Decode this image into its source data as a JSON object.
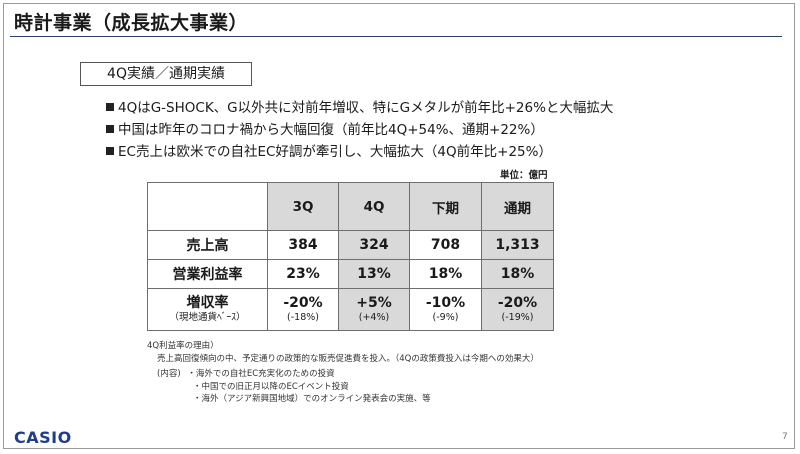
{
  "title": "時計事業（成長拡大事業）",
  "section_label": "4Q実績／通期実績",
  "bullets": [
    "4QはG-SHOCK、G以外共に対前年増収、特にGメタルが前年比+26%と大幅拡大",
    "中国は昨年のコロナ禍から大幅回復（前年比4Q+54%、通期+22%）",
    "EC売上は欧米での自社EC好調が牽引し、大幅拡大（4Q前年比+25%）"
  ],
  "unit": "単位：億円",
  "table": {
    "headers": [
      "3Q",
      "4Q",
      "下期",
      "通期"
    ],
    "rows": [
      {
        "label": "売上高",
        "values": [
          "384",
          "324",
          "708",
          "1,313"
        ]
      },
      {
        "label": "営業利益率",
        "values": [
          "23%",
          "13%",
          "18%",
          "18%"
        ]
      },
      {
        "label": "増収率",
        "sublabel": "（現地通貨ﾍﾞｰｽ）",
        "values": [
          "-20%",
          "+5%",
          "-10%",
          "-20%"
        ],
        "subvalues": [
          "(-18%)",
          "(+4%)",
          "(-9%)",
          "(-19%)"
        ]
      }
    ]
  },
  "notes": {
    "heading": "4Q利益率の理由）",
    "line1": "売上高回復傾向の中、予定通りの政策的な販売促進費を投入。（4Qの政策費投入は今期への効果大）",
    "detail_label": "(内容)",
    "items": [
      "・海外での自社EC充実化のための投資",
      "・中国での旧正月以降のECイベント投資",
      "・海外（アジア新興国地域）でのオンライン発表会の実施、等"
    ]
  },
  "logo": "CASIO",
  "page_number": "7",
  "colors": {
    "logo": "#1f3d8a",
    "title_rule": "#2b3f6b",
    "table_shade": "#d9d9d9"
  }
}
